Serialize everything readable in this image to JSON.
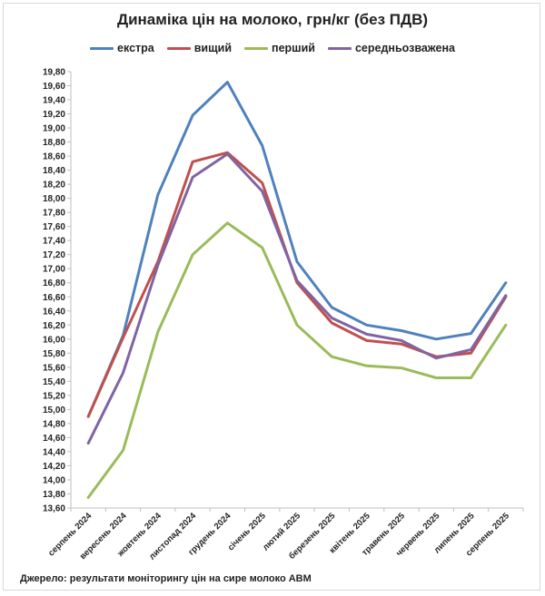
{
  "chart_data": {
    "type": "line",
    "title": "Динаміка цін на молоко, грн/кг (без ПДВ)",
    "source": "Джерело: результати моніторингу цін на сире молоко АВМ",
    "categories": [
      "серпень 2024",
      "вересень 2024",
      "жовтень 2024",
      "листопад 2024",
      "грудень 2024",
      "січень 2025",
      "лютий 2025",
      "березень 2025",
      "квітень 2025",
      "травень 2025",
      "червень 2025",
      "липень 2025",
      "серпень 2025"
    ],
    "ylim": [
      13.6,
      19.8
    ],
    "ystep": 0.2,
    "ytick_labels": [
      "13,60",
      "13,80",
      "14,00",
      "14,20",
      "14,40",
      "14,60",
      "14,80",
      "15,00",
      "15,20",
      "15,40",
      "15,60",
      "15,80",
      "16,00",
      "16,20",
      "16,40",
      "16,60",
      "16,80",
      "17,00",
      "17,20",
      "17,40",
      "17,60",
      "17,80",
      "18,00",
      "18,20",
      "18,40",
      "18,60",
      "18,80",
      "19,00",
      "19,20",
      "19,40",
      "19,60",
      "19,80"
    ],
    "grid": false,
    "legend_position": "top",
    "series": [
      {
        "name": "екстра",
        "color": "#4f81bd",
        "values": [
          14.9,
          16.05,
          18.05,
          19.18,
          19.65,
          18.75,
          17.1,
          16.45,
          16.2,
          16.12,
          16.0,
          16.08,
          16.8
        ]
      },
      {
        "name": "вищий",
        "color": "#c0504d",
        "values": [
          14.9,
          16.02,
          17.1,
          18.52,
          18.65,
          18.22,
          16.8,
          16.23,
          15.98,
          15.93,
          15.75,
          15.8,
          16.6
        ]
      },
      {
        "name": "перший",
        "color": "#9bbb59",
        "values": [
          13.75,
          14.42,
          16.1,
          17.2,
          17.65,
          17.3,
          16.2,
          15.75,
          15.62,
          15.59,
          15.45,
          15.45,
          16.2
        ]
      },
      {
        "name": "середньозважена",
        "color": "#8064a2",
        "values": [
          14.52,
          15.52,
          17.05,
          18.3,
          18.63,
          18.1,
          16.83,
          16.3,
          16.07,
          15.98,
          15.73,
          15.85,
          16.62
        ]
      }
    ]
  }
}
